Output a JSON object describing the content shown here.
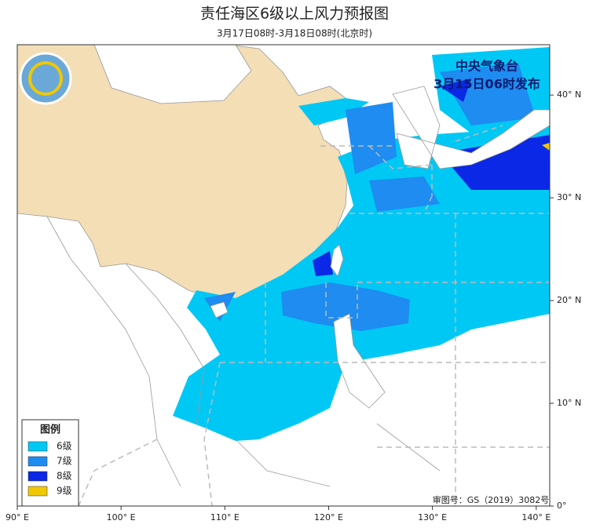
{
  "title": "责任海区6级以上风力预报图",
  "subtitle": "3月17日08时-3月18日08时(北京时)",
  "issuer": [
    "中央气象台",
    "3月15日06时发布"
  ],
  "legend": {
    "title": "图例",
    "items": [
      {
        "label": "6级",
        "color": "#00c8f5"
      },
      {
        "label": "7级",
        "color": "#1e8cf0"
      },
      {
        "label": "8级",
        "color": "#0a28e6"
      },
      {
        "label": "9级",
        "color": "#f0c800"
      }
    ]
  },
  "lon_range": [
    90,
    141.3
  ],
  "lat_range": [
    0,
    44.9
  ],
  "lon_ticks": [
    {
      "value": 90,
      "label": "90° E"
    },
    {
      "value": 100,
      "label": "100° E"
    },
    {
      "value": 110,
      "label": "110° E"
    },
    {
      "value": 120,
      "label": "120° E"
    },
    {
      "value": 130,
      "label": "130° E"
    },
    {
      "value": 140,
      "label": "140° E"
    }
  ],
  "lat_ticks": [
    {
      "value": 0,
      "label": "0°"
    },
    {
      "value": 10,
      "label": "10° N"
    },
    {
      "value": 20,
      "label": "20° N"
    },
    {
      "value": 30,
      "label": "30° N"
    },
    {
      "value": 40,
      "label": "40° N"
    }
  ],
  "review_number": "审图号：GS（2019）3082号"
}
